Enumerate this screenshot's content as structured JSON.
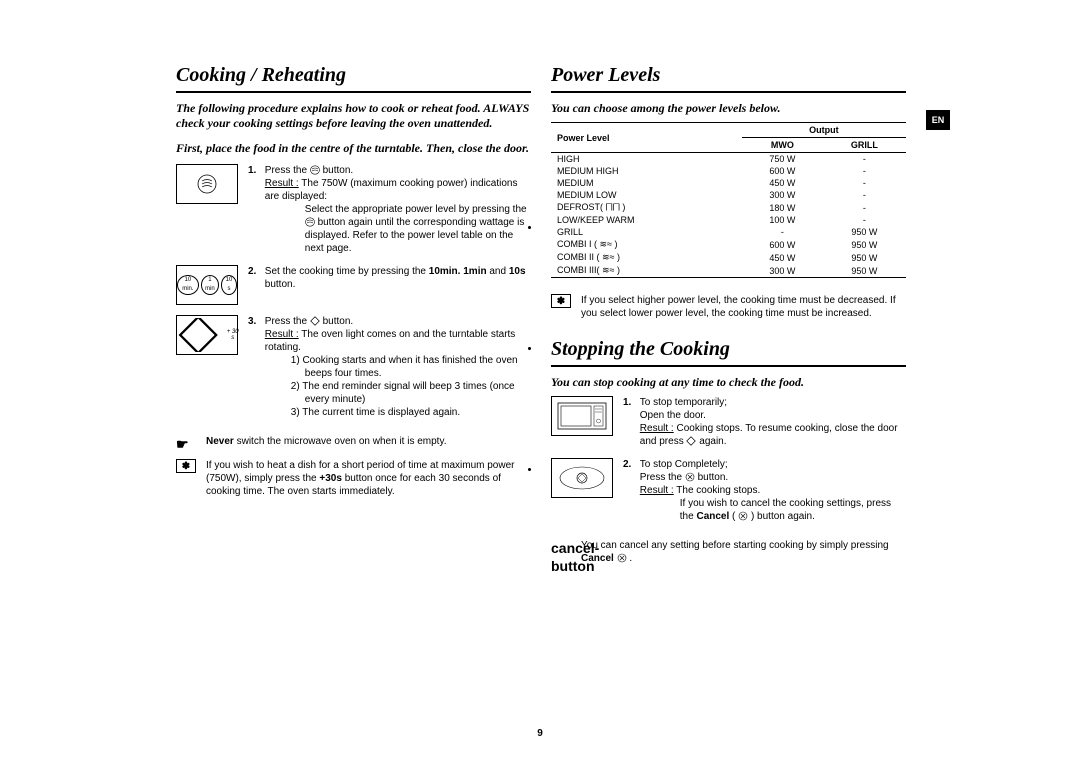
{
  "page_number": "9",
  "lang_tab": "EN",
  "left": {
    "title": "Cooking / Reheating",
    "intro": "The following procedure explains how to cook or reheat food. ALWAYS check your cooking settings before leaving the oven unattended.",
    "subintro": "First, place the food in the centre of the turntable. Then, close the door.",
    "steps": [
      {
        "num": "1.",
        "text_pre": "Press the ",
        "icon": "wave-button",
        "text_post": " button.",
        "result_label": "Result :",
        "result_text": "The 750W (maximum cooking power) indications are displayed:",
        "cont": "Select the appropriate power level by pressing the ",
        "cont_icon": "wave-button",
        "cont2": " button again until the corresponding wattage is displayed.  Refer to the power level table on the next page."
      },
      {
        "num": "2.",
        "text_pre": "Set the cooking time by pressing the ",
        "bold1": "10min.",
        "mid": " ",
        "bold2": "1min",
        "text_post": " and ",
        "bold3": "10s",
        "tail": " button."
      },
      {
        "num": "3.",
        "text_pre": "Press the ",
        "icon": "diamond-button",
        "text_post": " button.",
        "result_label": "Result :",
        "result_text": "The oven light comes on and the turntable starts rotating.",
        "subitems": [
          "1)   Cooking starts and when it has finished the oven beeps four times.",
          "2)   The end reminder signal will beep 3 times (once every minute)",
          "3)   The current time is displayed again."
        ]
      }
    ],
    "notes": [
      {
        "icon": "☛",
        "bold": "Never",
        "text": " switch the microwave oven on when it is empty."
      },
      {
        "icon": "✽",
        "text": "If you wish to heat a dish for a short period of time at maximum power (750W), simply press the ",
        "bold": "+30s",
        "text2": " button once for each 30 seconds of cooking time. The oven starts immediately."
      }
    ],
    "illus_labels": {
      "b2_left": "10 min.",
      "b2_mid": "1 min",
      "b2_right": "10 s",
      "b2_tiny": "h        min",
      "b3": "+ 30 s"
    }
  },
  "right_top": {
    "title": "Power Levels",
    "intro": "You can choose among the power levels below.",
    "table": {
      "col_pl": "Power Level",
      "col_out": "Output",
      "col_mwo": "MWO",
      "col_grill": "GRILL",
      "rows": [
        {
          "pl": "HIGH",
          "mwo": "750 W",
          "grill": "-"
        },
        {
          "pl": "MEDIUM HIGH",
          "mwo": "600 W",
          "grill": "-"
        },
        {
          "pl": "MEDIUM",
          "mwo": "450 W",
          "grill": "-"
        },
        {
          "pl": "MEDIUM LOW",
          "mwo": "300 W",
          "grill": "-"
        },
        {
          "pl": "DEFROST( ⨅⨅ )",
          "mwo": "180 W",
          "grill": "-"
        },
        {
          "pl": "LOW/KEEP WARM",
          "mwo": "100 W",
          "grill": "-"
        },
        {
          "pl": "GRILL",
          "mwo": "-",
          "grill": "950 W"
        },
        {
          "pl": "COMBI I  ( ≋≈ )",
          "mwo": "600 W",
          "grill": "950 W"
        },
        {
          "pl": "COMBI II ( ≋≈ )",
          "mwo": "450 W",
          "grill": "950 W"
        },
        {
          "pl": "COMBI III( ≋≈ )",
          "mwo": "300 W",
          "grill": "950 W"
        }
      ]
    },
    "note": {
      "icon": "✽",
      "text": "If you select higher power level, the cooking time must be decreased. If you select lower power level, the cooking time must be increased."
    }
  },
  "right_bottom": {
    "title": "Stopping the Cooking",
    "intro": "You can stop cooking at any time to check the food.",
    "steps": [
      {
        "num": "1.",
        "line1": "To stop temporarily;",
        "line2": "Open the door.",
        "result_label": "Result :",
        "result_text": "Cooking stops. To resume cooking, close the door and press ",
        "icon": "diamond-button",
        "tail": " again."
      },
      {
        "num": "2.",
        "line1": "To stop Completely;",
        "line2_pre": "Press the ",
        "line2_icon": "cancel-button",
        "line2_post": " button.",
        "result_label": "Result :",
        "result_text": "The cooking stops.",
        "cont": "If you wish to cancel the cooking settings, press the ",
        "bold": "Cancel",
        "cont2": "( ",
        "icon2": "cancel-button",
        "cont3": " ) button again."
      }
    ],
    "note": {
      "icon": "cancel-button",
      "text1": "You can cancel any setting before starting cooking by simply pressing ",
      "bold": "Cancel",
      "text2": " ",
      "text3": " ."
    }
  }
}
